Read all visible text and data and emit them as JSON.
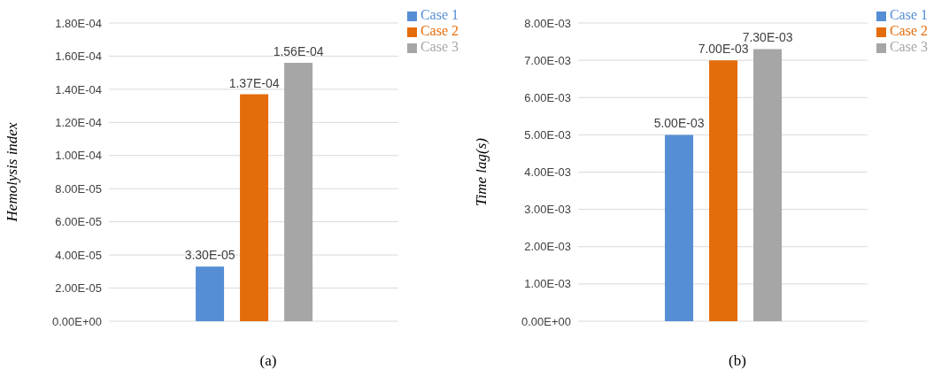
{
  "chart_data": [
    {
      "type": "bar",
      "xlabel": "(a)",
      "ylabel": "Hemolysis index",
      "categories": [
        null
      ],
      "tick_labels": "y",
      "grid": "y",
      "legend": "top right",
      "ylim": [
        0,
        0.00018
      ],
      "yticks": [
        {
          "value": 0,
          "label": "0.00E+00"
        },
        {
          "value": 2e-05,
          "label": "2.00E-05"
        },
        {
          "value": 4e-05,
          "label": "4.00E-05"
        },
        {
          "value": 6e-05,
          "label": "6.00E-05"
        },
        {
          "value": 8e-05,
          "label": "8.00E-05"
        },
        {
          "value": 0.0001,
          "label": "1.00E-04"
        },
        {
          "value": 0.00012,
          "label": "1.20E-04"
        },
        {
          "value": 0.00014,
          "label": "1.40E-04"
        },
        {
          "value": 0.00016,
          "label": "1.60E-04"
        },
        {
          "value": 0.00018,
          "label": "1.80E-04"
        }
      ],
      "series": [
        {
          "name": "Case 1",
          "color": "#558ed5",
          "values": [
            3.3e-05
          ],
          "value_labels": [
            "3.30E-05"
          ]
        },
        {
          "name": "Case 2",
          "color": "#e46c0a",
          "values": [
            0.000137
          ],
          "value_labels": [
            "1.37E-04"
          ]
        },
        {
          "name": "Case 3",
          "color": "#a6a6a6",
          "values": [
            0.000156
          ],
          "value_labels": [
            "1.56E-04"
          ]
        }
      ]
    },
    {
      "type": "bar",
      "xlabel": "(b)",
      "ylabel": "Time lag(s)",
      "categories": [
        null
      ],
      "tick_labels": "y",
      "grid": "y",
      "legend": "top right",
      "ylim": [
        0,
        0.008
      ],
      "yticks": [
        {
          "value": 0,
          "label": "0.00E+00"
        },
        {
          "value": 0.001,
          "label": "1.00E-03"
        },
        {
          "value": 0.002,
          "label": "2.00E-03"
        },
        {
          "value": 0.003,
          "label": "3.00E-03"
        },
        {
          "value": 0.004,
          "label": "4.00E-03"
        },
        {
          "value": 0.005,
          "label": "5.00E-03"
        },
        {
          "value": 0.006,
          "label": "6.00E-03"
        },
        {
          "value": 0.007,
          "label": "7.00E-03"
        },
        {
          "value": 0.008,
          "label": "8.00E-03"
        }
      ],
      "series": [
        {
          "name": "Case 1",
          "color": "#558ed5",
          "values": [
            0.005
          ],
          "value_labels": [
            "5.00E-03"
          ]
        },
        {
          "name": "Case 2",
          "color": "#e46c0a",
          "values": [
            0.007
          ],
          "value_labels": [
            "7.00E-03"
          ]
        },
        {
          "name": "Case 3",
          "color": "#a6a6a6",
          "values": [
            0.0073
          ],
          "value_labels": [
            "7.30E-03"
          ]
        }
      ]
    }
  ]
}
